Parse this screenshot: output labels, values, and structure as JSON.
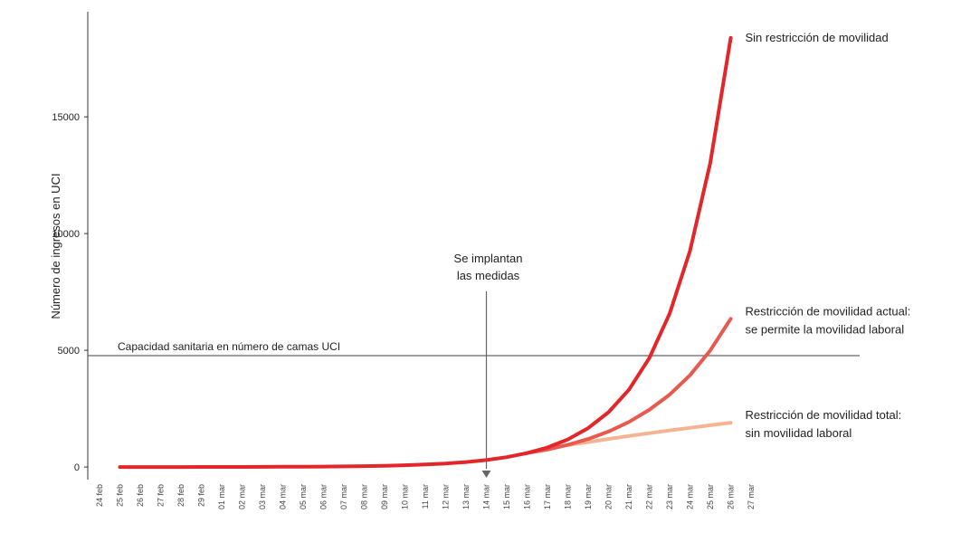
{
  "chart_data": {
    "type": "line",
    "y_label": "Número de ingresos en UCI",
    "categories": [
      "24 feb",
      "25 feb",
      "26 feb",
      "27 feb",
      "28 feb",
      "29 feb",
      "01 mar",
      "02 mar",
      "03 mar",
      "04 mar",
      "05 mar",
      "06 mar",
      "07 mar",
      "08 mar",
      "09 mar",
      "10 mar",
      "11 mar",
      "12 mar",
      "13 mar",
      "14 mar",
      "15 mar",
      "16 mar",
      "17 mar",
      "18 mar",
      "19 mar",
      "20 mar",
      "21 mar",
      "22 mar",
      "23 mar",
      "24 mar",
      "25 mar",
      "26 mar",
      "27 mar"
    ],
    "ylim": [
      -500,
      19500
    ],
    "yticks": [
      0,
      5000,
      10000,
      15000
    ],
    "series": [
      {
        "name": [
          "Sin restricción de movilidad"
        ],
        "color": "#e3262a",
        "values": [
          null,
          0.6,
          0.9,
          1.2,
          1.7,
          2.5,
          3.5,
          4.9,
          6.9,
          9.7,
          13.7,
          19,
          27,
          38,
          54,
          76,
          107,
          151,
          213,
          300,
          423,
          596,
          839,
          1183,
          1667,
          2349,
          3309,
          4663,
          6570,
          9258,
          13044,
          18380,
          null
        ]
      },
      {
        "name": [
          "Restricción de movilidad actual:",
          "se permite la movilidad laboral"
        ],
        "color": "#e85a50",
        "values": [
          null,
          null,
          null,
          null,
          null,
          null,
          null,
          null,
          null,
          null,
          null,
          null,
          null,
          null,
          null,
          null,
          null,
          null,
          null,
          null,
          null,
          596,
          750,
          950,
          1200,
          1520,
          1930,
          2450,
          3100,
          3930,
          5000,
          6350,
          null
        ]
      },
      {
        "name": [
          "Restricción de movilidad total:",
          "sin movilidad laboral"
        ],
        "color": "#f4b494",
        "values": [
          null,
          null,
          null,
          null,
          null,
          null,
          null,
          null,
          null,
          null,
          null,
          null,
          null,
          null,
          null,
          null,
          null,
          null,
          null,
          null,
          null,
          596,
          800,
          940,
          1070,
          1200,
          1330,
          1450,
          1570,
          1680,
          1790,
          1900,
          null
        ]
      }
    ],
    "hline": {
      "label": "Capacidad sanitaria en número de camas UCI",
      "value": 4770
    },
    "annotation": {
      "text": [
        "Se implantan",
        "las medidas"
      ],
      "category": "14 mar"
    }
  }
}
